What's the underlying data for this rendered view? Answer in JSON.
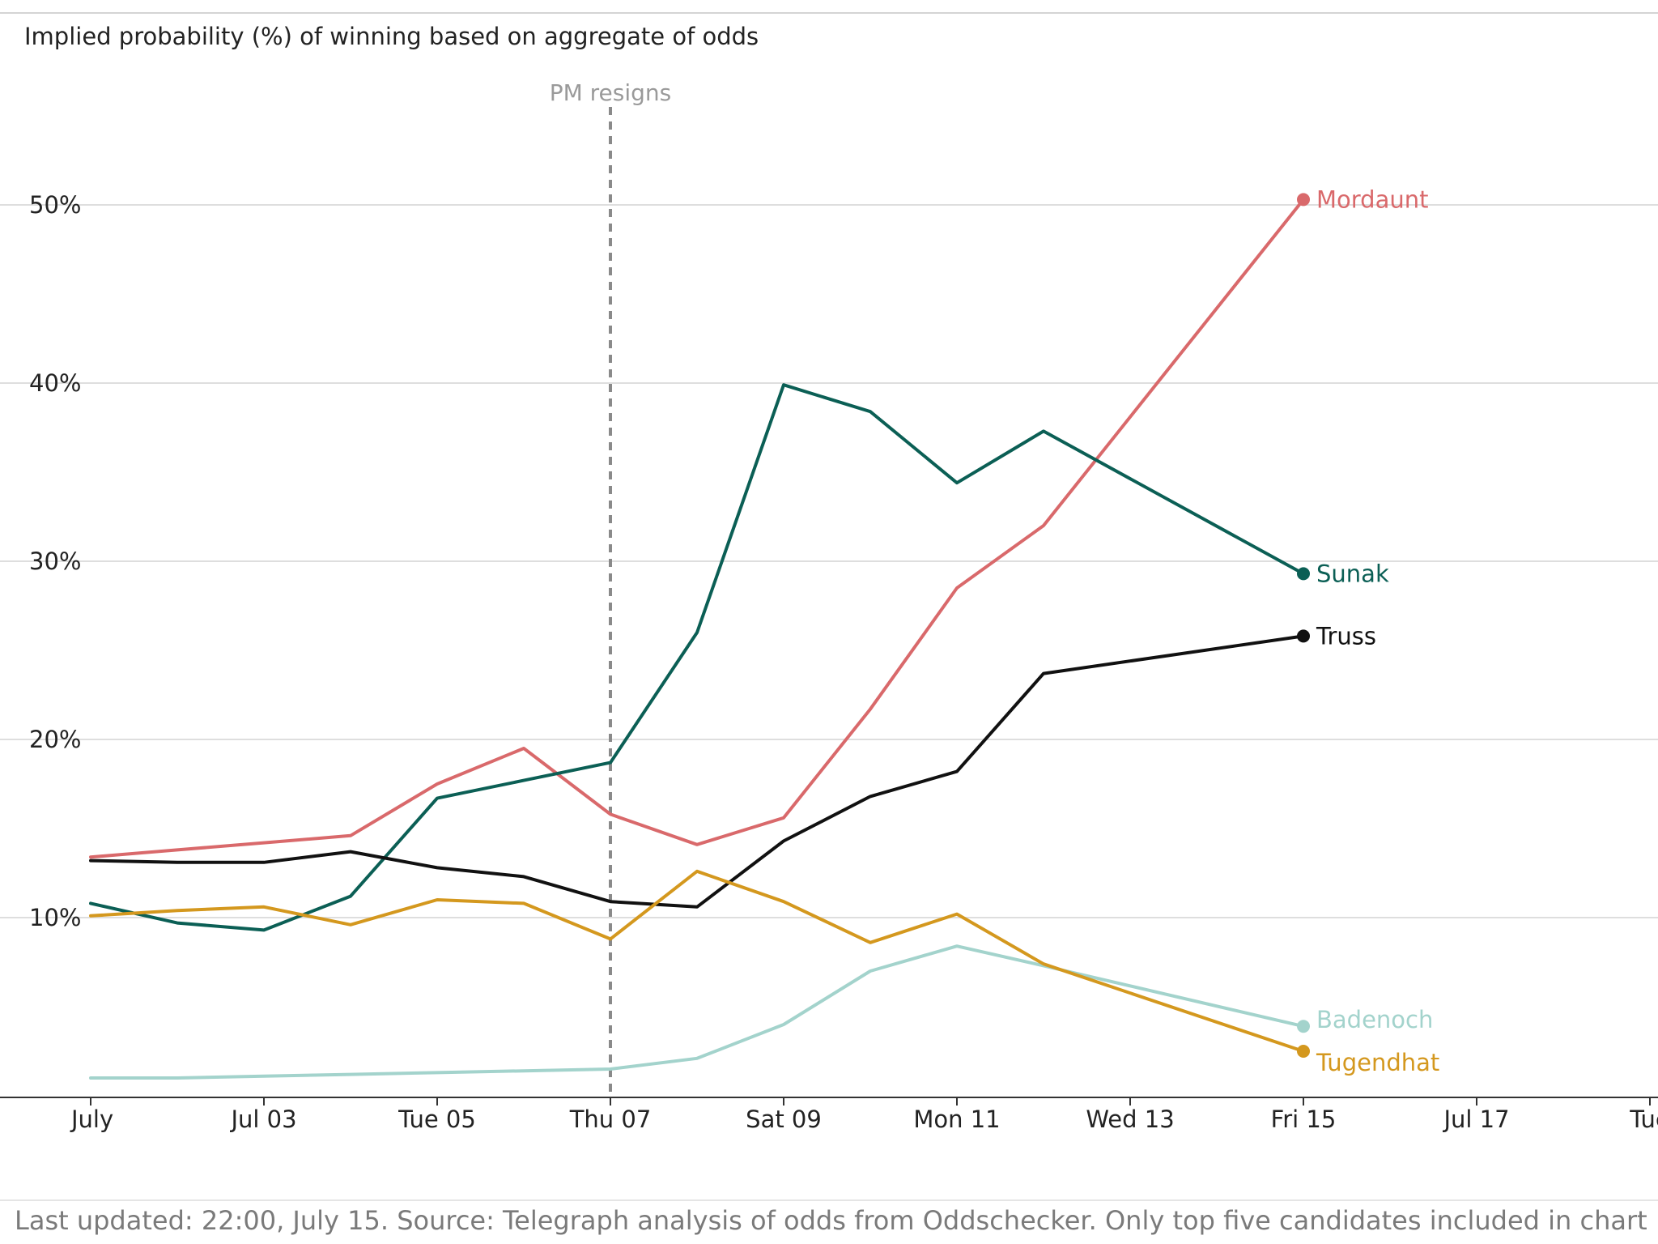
{
  "chart_data": {
    "type": "line",
    "title": "Implied probability (%) of winning based on aggregate of odds",
    "x_ticks": [
      "July",
      "Jul 03",
      "Tue 05",
      "Thu 07",
      "Sat 09",
      "Mon 11",
      "Wed 13",
      "Fri 15",
      "Jul 17",
      "Tue"
    ],
    "x_tick_days": [
      1,
      3,
      5,
      7,
      9,
      11,
      13,
      15,
      17,
      19
    ],
    "xlim": [
      "2022-07-01",
      "2022-07-19"
    ],
    "x": [
      "2022-07-01",
      "2022-07-02",
      "2022-07-03",
      "2022-07-04",
      "2022-07-05",
      "2022-07-06",
      "2022-07-07",
      "2022-07-08",
      "2022-07-09",
      "2022-07-10",
      "2022-07-11",
      "2022-07-12",
      "2022-07-15"
    ],
    "y_ticks": [
      "10%",
      "20%",
      "30%",
      "40%",
      "50%"
    ],
    "y_tick_values": [
      10,
      20,
      30,
      40,
      50
    ],
    "ylim": [
      0,
      55
    ],
    "grid": "horizontal",
    "series": [
      {
        "name": "Mordaunt",
        "color": "#d9696b",
        "values": [
          13.4,
          13.8,
          14.2,
          14.6,
          17.5,
          19.5,
          15.8,
          14.1,
          15.6,
          21.7,
          28.5,
          32.0,
          50.3
        ]
      },
      {
        "name": "Sunak",
        "color": "#0b5f55",
        "values": [
          10.8,
          9.7,
          9.3,
          11.2,
          16.7,
          17.7,
          18.7,
          26.0,
          39.9,
          38.4,
          34.4,
          37.3,
          29.3
        ]
      },
      {
        "name": "Truss",
        "color": "#111111",
        "values": [
          13.2,
          13.1,
          13.1,
          13.7,
          12.8,
          12.3,
          10.9,
          10.6,
          14.3,
          16.8,
          18.2,
          23.7,
          25.8
        ]
      },
      {
        "name": "Badenoch",
        "color": "#a3d3cc",
        "values": [
          1.0,
          1.0,
          1.1,
          1.2,
          1.3,
          1.4,
          1.5,
          2.1,
          4.0,
          7.0,
          8.4,
          7.3,
          3.9
        ]
      },
      {
        "name": "Tugendhat",
        "color": "#d4981e",
        "values": [
          10.1,
          10.4,
          10.6,
          9.6,
          11.0,
          10.8,
          8.8,
          12.6,
          10.9,
          8.6,
          10.2,
          7.4,
          2.5
        ]
      }
    ],
    "annotations": [
      {
        "label": "PM resigns",
        "x": "2022-07-07"
      }
    ],
    "footnote": "Last updated: 22:00, July 15. Source: Telegraph analysis of odds from Oddschecker. Only top five candidates included in chart"
  }
}
